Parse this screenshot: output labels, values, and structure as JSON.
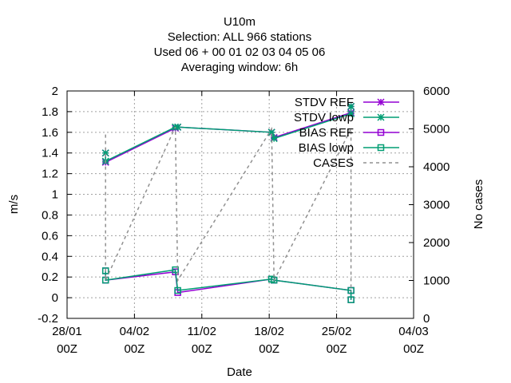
{
  "chart_data": {
    "type": "line",
    "title_lines": [
      "U10m",
      "Selection: ALL     966 stations",
      "Used  06  + 00 01 02 03 04 05 06",
      "Averaging window:  6h"
    ],
    "xlabel": "Date",
    "ylabel": "m/s",
    "y2label": "No cases",
    "x_range": [
      "2024-01-28T00:00",
      "2024-03-04T00:00"
    ],
    "xticks": [
      {
        "date": "2024-01-28T00:00",
        "line1": "28/01",
        "line2": "00Z"
      },
      {
        "date": "2024-02-04T00:00",
        "line1": "04/02",
        "line2": "00Z"
      },
      {
        "date": "2024-02-11T00:00",
        "line1": "11/02",
        "line2": "00Z"
      },
      {
        "date": "2024-02-18T00:00",
        "line1": "18/02",
        "line2": "00Z"
      },
      {
        "date": "2024-02-25T00:00",
        "line1": "25/02",
        "line2": "00Z"
      },
      {
        "date": "2024-03-04T00:00",
        "line1": "04/03",
        "line2": "00Z"
      }
    ],
    "ylim": [
      -0.2,
      2
    ],
    "yticks": [
      "-0.2",
      "0",
      "0.2",
      "0.4",
      "0.6",
      "0.8",
      "1",
      "1.2",
      "1.4",
      "1.6",
      "1.8",
      "2"
    ],
    "y2lim": [
      0,
      6000
    ],
    "y2ticks": [
      "0",
      "1000",
      "2000",
      "3000",
      "4000",
      "5000",
      "6000"
    ],
    "grid": true,
    "legend_position": "top-right",
    "series": [
      {
        "name": "STDV REF",
        "color": "#9400d3",
        "marker": "star",
        "axis": "y1",
        "dash": false,
        "points": [
          {
            "x": "2024-02-01T00:00",
            "y": 1.4
          },
          {
            "x": "2024-02-01T00:00",
            "y": 1.31
          },
          {
            "x": "2024-02-08T06:00",
            "y": 1.64
          },
          {
            "x": "2024-02-08T12:00",
            "y": 1.65
          },
          {
            "x": "2024-02-18T06:00",
            "y": 1.6
          },
          {
            "x": "2024-02-18T12:00",
            "y": 1.55
          },
          {
            "x": "2024-02-26T12:00",
            "y": 1.79
          },
          {
            "x": "2024-02-26T12:00",
            "y": 1.85
          }
        ]
      },
      {
        "name": "STDV lowp",
        "color": "#009e73",
        "marker": "star",
        "axis": "y1",
        "dash": false,
        "points": [
          {
            "x": "2024-02-01T00:00",
            "y": 1.4
          },
          {
            "x": "2024-02-01T00:00",
            "y": 1.32
          },
          {
            "x": "2024-02-08T06:00",
            "y": 1.65
          },
          {
            "x": "2024-02-08T12:00",
            "y": 1.65
          },
          {
            "x": "2024-02-18T06:00",
            "y": 1.6
          },
          {
            "x": "2024-02-18T12:00",
            "y": 1.54
          },
          {
            "x": "2024-02-26T12:00",
            "y": 1.78
          },
          {
            "x": "2024-02-26T12:00",
            "y": 1.85
          }
        ]
      },
      {
        "name": "BIAS REF",
        "color": "#9400d3",
        "marker": "square",
        "axis": "y1",
        "dash": false,
        "points": [
          {
            "x": "2024-02-01T00:00",
            "y": 0.26
          },
          {
            "x": "2024-02-01T00:00",
            "y": 0.17
          },
          {
            "x": "2024-02-08T06:00",
            "y": 0.25
          },
          {
            "x": "2024-02-08T12:00",
            "y": 0.05
          },
          {
            "x": "2024-02-18T06:00",
            "y": 0.18
          },
          {
            "x": "2024-02-18T12:00",
            "y": 0.17
          },
          {
            "x": "2024-02-26T12:00",
            "y": 0.07
          },
          {
            "x": "2024-02-26T12:00",
            "y": -0.02
          }
        ]
      },
      {
        "name": "BIAS lowp",
        "color": "#009e73",
        "marker": "square",
        "axis": "y1",
        "dash": false,
        "points": [
          {
            "x": "2024-02-01T00:00",
            "y": 0.26
          },
          {
            "x": "2024-02-01T00:00",
            "y": 0.17
          },
          {
            "x": "2024-02-08T06:00",
            "y": 0.27
          },
          {
            "x": "2024-02-08T12:00",
            "y": 0.07
          },
          {
            "x": "2024-02-18T06:00",
            "y": 0.18
          },
          {
            "x": "2024-02-18T12:00",
            "y": 0.17
          },
          {
            "x": "2024-02-26T12:00",
            "y": 0.07
          },
          {
            "x": "2024-02-26T12:00",
            "y": -0.02
          }
        ]
      },
      {
        "name": "CASES",
        "color": "#909090",
        "marker": "none",
        "axis": "y2",
        "dash": true,
        "points": [
          {
            "x": "2024-02-01T00:00",
            "y": 4850
          },
          {
            "x": "2024-02-01T00:00",
            "y": 1000
          },
          {
            "x": "2024-02-08T06:00",
            "y": 5050
          },
          {
            "x": "2024-02-08T12:00",
            "y": 1000
          },
          {
            "x": "2024-02-18T06:00",
            "y": 5000
          },
          {
            "x": "2024-02-18T12:00",
            "y": 1000
          },
          {
            "x": "2024-02-26T12:00",
            "y": 5000
          },
          {
            "x": "2024-02-26T12:00",
            "y": 700
          }
        ]
      }
    ]
  }
}
